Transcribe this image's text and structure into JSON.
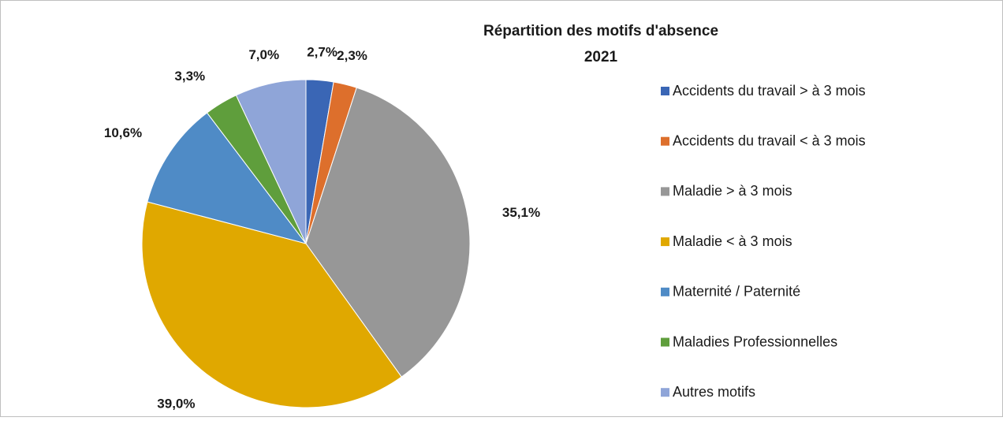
{
  "chart_data": {
    "type": "pie",
    "title": "Répartition des motifs d'absence",
    "subtitle": "2021",
    "categories": [
      "Accidents du travail > à 3 mois",
      "Accidents du travail < à 3 mois",
      "Maladie > à 3 mois",
      "Maladie < à 3 mois",
      "Maternité / Paternité",
      "Maladies Professionnelles",
      "Autres motifs"
    ],
    "values": [
      2.7,
      2.3,
      35.1,
      39.0,
      10.6,
      3.3,
      7.0
    ],
    "value_labels": [
      "2,7%",
      "2,3%",
      "35,1%",
      "39,0%",
      "10,6%",
      "3,3%",
      "7,0%"
    ],
    "colors": [
      "#3a66b5",
      "#dd6f2c",
      "#979797",
      "#e0a800",
      "#4f8bc6",
      "#5f9e3c",
      "#8fa5d8"
    ],
    "legend": "right"
  }
}
